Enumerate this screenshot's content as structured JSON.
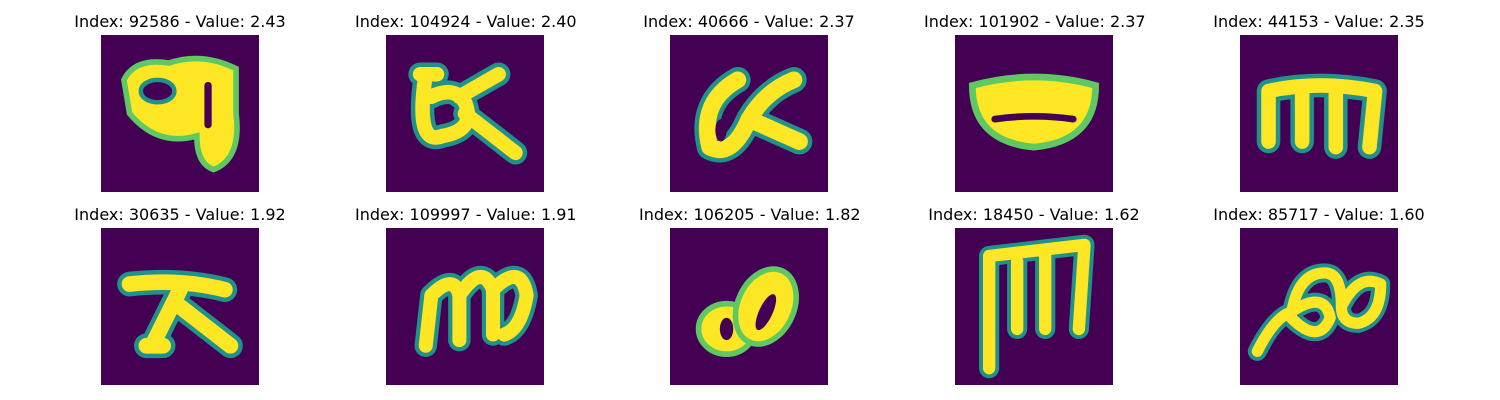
{
  "colors": {
    "background": "#440154",
    "glyph_core": "#fde725",
    "glyph_mid": "#5ec962",
    "glyph_edge": "#21918c"
  },
  "samples": [
    {
      "title": "Index: 92586 - Value: 2.43",
      "glyph": "glyph-a-icon"
    },
    {
      "title": "Index: 104924 - Value: 2.40",
      "glyph": "glyph-b-icon"
    },
    {
      "title": "Index: 40666 - Value: 2.37",
      "glyph": "glyph-c-icon"
    },
    {
      "title": "Index: 101902 - Value: 2.37",
      "glyph": "glyph-d-icon"
    },
    {
      "title": "Index: 44153 - Value: 2.35",
      "glyph": "glyph-e-icon"
    },
    {
      "title": "Index: 30635 - Value: 1.92",
      "glyph": "glyph-f-icon"
    },
    {
      "title": "Index: 109997 - Value: 1.91",
      "glyph": "glyph-g-icon"
    },
    {
      "title": "Index: 106205 - Value: 1.82",
      "glyph": "glyph-h-icon"
    },
    {
      "title": "Index: 18450 - Value: 1.62",
      "glyph": "glyph-i-icon"
    },
    {
      "title": "Index: 85717 - Value: 1.60",
      "glyph": "glyph-j-icon"
    }
  ]
}
